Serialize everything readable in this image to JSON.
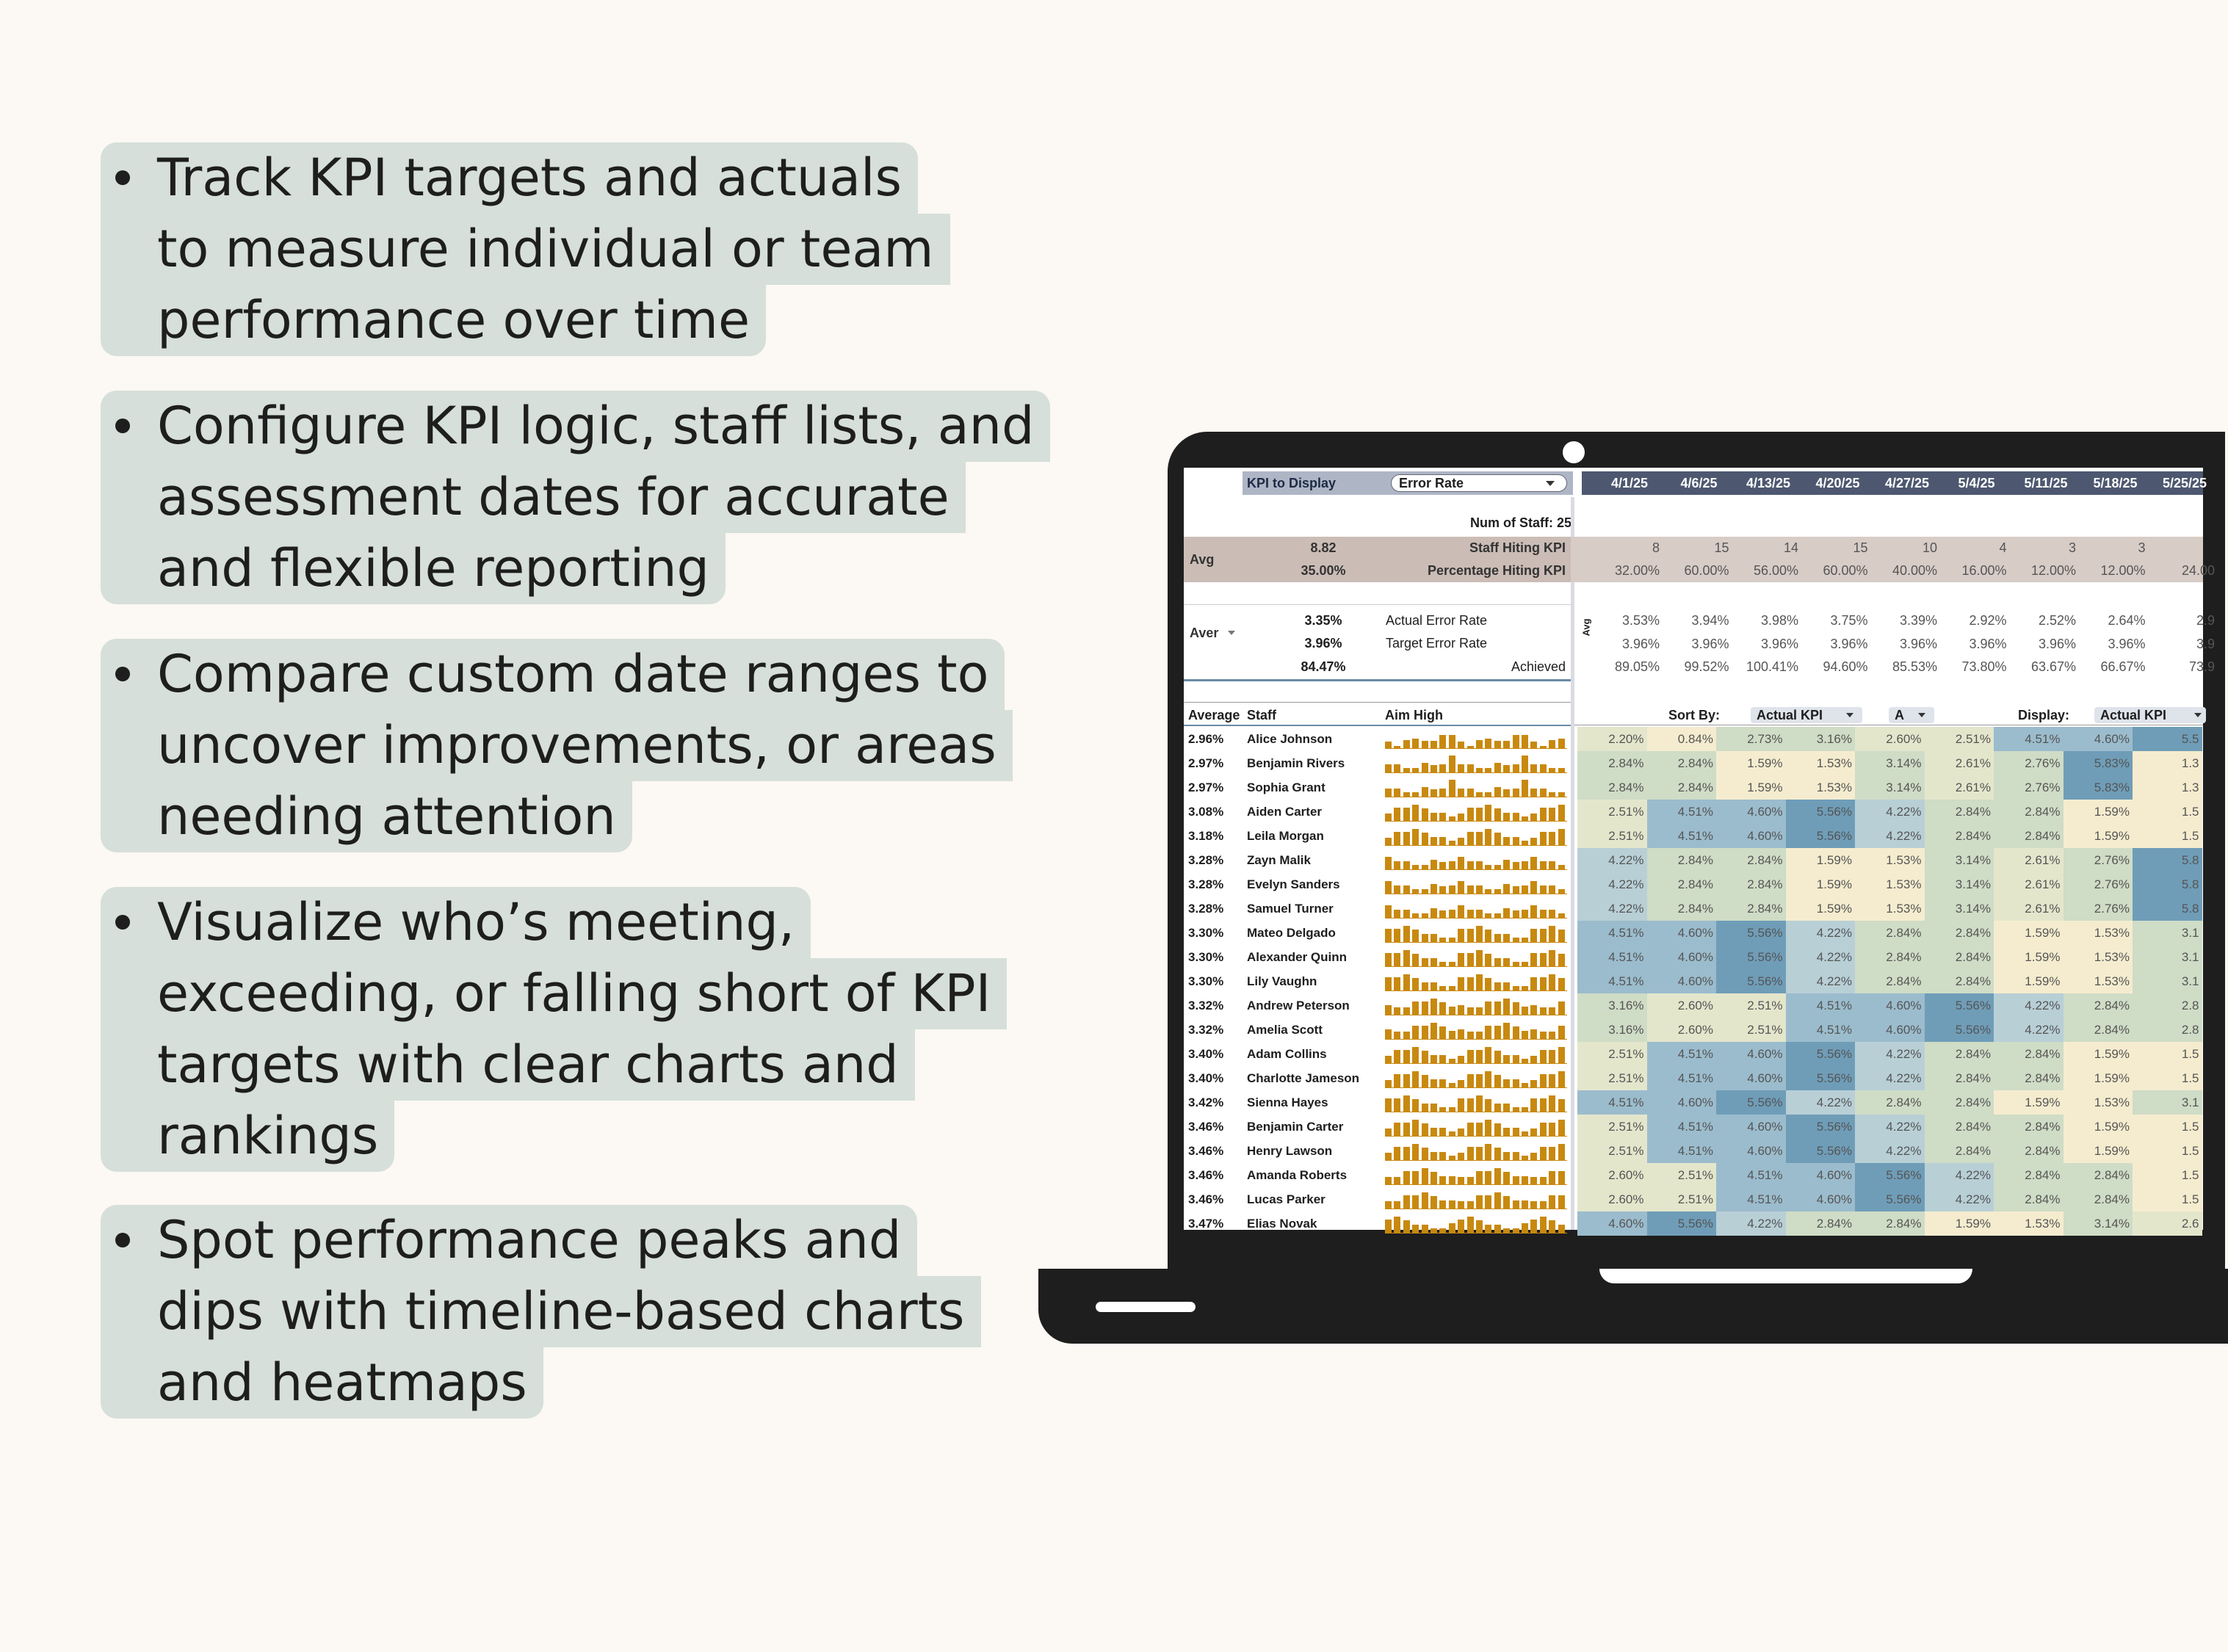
{
  "features": [
    [
      "Track KPI targets and actuals",
      "to measure individual or team",
      "performance over time"
    ],
    [
      "Configure KPI logic, staff lists, and",
      "assessment dates for accurate",
      "and flexible reporting"
    ],
    [
      "Compare custom date ranges to",
      "uncover improvements, or areas",
      "needing attention"
    ],
    [
      "Visualize who’s meeting,",
      "exceeding, or falling short of KPI",
      "targets with clear charts and",
      "rankings"
    ],
    [
      "Spot performance peaks and",
      "dips with timeline-based charts",
      "and heatmaps"
    ]
  ],
  "sheet": {
    "kpi_label": "KPI to Display",
    "kpi_value": "Error Rate",
    "dates": [
      "4/1/25",
      "4/6/25",
      "4/13/25",
      "4/20/25",
      "4/27/25",
      "5/4/25",
      "5/11/25",
      "5/18/25",
      "5/25/25"
    ],
    "num_staff": "Num of Staff: 25",
    "avg_label": "Avg",
    "staff_hitting_avg": "8.82",
    "staff_hitting_label": "Staff Hiting KPI",
    "staff_hitting": [
      "8",
      "15",
      "14",
      "15",
      "10",
      "4",
      "3",
      "3",
      ""
    ],
    "pct_hitting_avg": "35.00%",
    "pct_hitting_label": "Percentage Hiting KPI",
    "pct_hitting": [
      "32.00%",
      "60.00%",
      "56.00%",
      "60.00%",
      "40.00%",
      "16.00%",
      "12.00%",
      "12.00%",
      "24.00"
    ],
    "aver_label": "Aver",
    "actual_rate_avg": "3.35%",
    "actual_rate_label": "Actual Error Rate",
    "actual_rate": [
      "3.53%",
      "3.94%",
      "3.98%",
      "3.75%",
      "3.39%",
      "2.92%",
      "2.52%",
      "2.64%",
      "2.9"
    ],
    "target_rate_avg": "3.96%",
    "target_rate_label": "Target Error Rate",
    "target_rate": [
      "3.96%",
      "3.96%",
      "3.96%",
      "3.96%",
      "3.96%",
      "3.96%",
      "3.96%",
      "3.96%",
      "3.9"
    ],
    "achieved_avg": "84.47%",
    "achieved_label": "Achieved",
    "achieved": [
      "89.05%",
      "99.52%",
      "100.41%",
      "94.60%",
      "85.53%",
      "73.80%",
      "63.67%",
      "66.67%",
      "73.9"
    ],
    "vert_avg": "Avg",
    "col_average": "Average",
    "col_staff": "Staff",
    "col_aim": "Aim High",
    "sort_by_label": "Sort By:",
    "sort_by_value": "Actual KPI",
    "sort_order": "A",
    "display_label": "Display:",
    "display_value": "Actual KPI",
    "staff": [
      {
        "avg": "2.96%",
        "name": "Alice Johnson",
        "vals": [
          "2.20%",
          "0.84%",
          "2.73%",
          "3.16%",
          "2.60%",
          "2.51%",
          "4.51%",
          "4.60%",
          "5.5"
        ]
      },
      {
        "avg": "2.97%",
        "name": "Benjamin Rivers",
        "vals": [
          "2.84%",
          "2.84%",
          "1.59%",
          "1.53%",
          "3.14%",
          "2.61%",
          "2.76%",
          "5.83%",
          "1.3"
        ]
      },
      {
        "avg": "2.97%",
        "name": "Sophia Grant",
        "vals": [
          "2.84%",
          "2.84%",
          "1.59%",
          "1.53%",
          "3.14%",
          "2.61%",
          "2.76%",
          "5.83%",
          "1.3"
        ]
      },
      {
        "avg": "3.08%",
        "name": "Aiden Carter",
        "vals": [
          "2.51%",
          "4.51%",
          "4.60%",
          "5.56%",
          "4.22%",
          "2.84%",
          "2.84%",
          "1.59%",
          "1.5"
        ]
      },
      {
        "avg": "3.18%",
        "name": "Leila Morgan",
        "vals": [
          "2.51%",
          "4.51%",
          "4.60%",
          "5.56%",
          "4.22%",
          "2.84%",
          "2.84%",
          "1.59%",
          "1.5"
        ]
      },
      {
        "avg": "3.28%",
        "name": "Zayn Malik",
        "vals": [
          "4.22%",
          "2.84%",
          "2.84%",
          "1.59%",
          "1.53%",
          "3.14%",
          "2.61%",
          "2.76%",
          "5.8"
        ]
      },
      {
        "avg": "3.28%",
        "name": "Evelyn Sanders",
        "vals": [
          "4.22%",
          "2.84%",
          "2.84%",
          "1.59%",
          "1.53%",
          "3.14%",
          "2.61%",
          "2.76%",
          "5.8"
        ]
      },
      {
        "avg": "3.28%",
        "name": "Samuel Turner",
        "vals": [
          "4.22%",
          "2.84%",
          "2.84%",
          "1.59%",
          "1.53%",
          "3.14%",
          "2.61%",
          "2.76%",
          "5.8"
        ]
      },
      {
        "avg": "3.30%",
        "name": "Mateo Delgado",
        "vals": [
          "4.51%",
          "4.60%",
          "5.56%",
          "4.22%",
          "2.84%",
          "2.84%",
          "1.59%",
          "1.53%",
          "3.1"
        ]
      },
      {
        "avg": "3.30%",
        "name": "Alexander Quinn",
        "vals": [
          "4.51%",
          "4.60%",
          "5.56%",
          "4.22%",
          "2.84%",
          "2.84%",
          "1.59%",
          "1.53%",
          "3.1"
        ]
      },
      {
        "avg": "3.30%",
        "name": "Lily Vaughn",
        "vals": [
          "4.51%",
          "4.60%",
          "5.56%",
          "4.22%",
          "2.84%",
          "2.84%",
          "1.59%",
          "1.53%",
          "3.1"
        ]
      },
      {
        "avg": "3.32%",
        "name": "Andrew Peterson",
        "vals": [
          "3.16%",
          "2.60%",
          "2.51%",
          "4.51%",
          "4.60%",
          "5.56%",
          "4.22%",
          "2.84%",
          "2.8"
        ]
      },
      {
        "avg": "3.32%",
        "name": "Amelia Scott",
        "vals": [
          "3.16%",
          "2.60%",
          "2.51%",
          "4.51%",
          "4.60%",
          "5.56%",
          "4.22%",
          "2.84%",
          "2.8"
        ]
      },
      {
        "avg": "3.40%",
        "name": "Adam Collins",
        "vals": [
          "2.51%",
          "4.51%",
          "4.60%",
          "5.56%",
          "4.22%",
          "2.84%",
          "2.84%",
          "1.59%",
          "1.5"
        ]
      },
      {
        "avg": "3.40%",
        "name": "Charlotte Jameson",
        "vals": [
          "2.51%",
          "4.51%",
          "4.60%",
          "5.56%",
          "4.22%",
          "2.84%",
          "2.84%",
          "1.59%",
          "1.5"
        ]
      },
      {
        "avg": "3.42%",
        "name": "Sienna Hayes",
        "vals": [
          "4.51%",
          "4.60%",
          "5.56%",
          "4.22%",
          "2.84%",
          "2.84%",
          "1.59%",
          "1.53%",
          "3.1"
        ]
      },
      {
        "avg": "3.46%",
        "name": "Benjamin Carter",
        "vals": [
          "2.51%",
          "4.51%",
          "4.60%",
          "5.56%",
          "4.22%",
          "2.84%",
          "2.84%",
          "1.59%",
          "1.5"
        ]
      },
      {
        "avg": "3.46%",
        "name": "Henry Lawson",
        "vals": [
          "2.51%",
          "4.51%",
          "4.60%",
          "5.56%",
          "4.22%",
          "2.84%",
          "2.84%",
          "1.59%",
          "1.5"
        ]
      },
      {
        "avg": "3.46%",
        "name": "Amanda Roberts",
        "vals": [
          "2.60%",
          "2.51%",
          "4.51%",
          "4.60%",
          "5.56%",
          "4.22%",
          "2.84%",
          "2.84%",
          "1.5"
        ]
      },
      {
        "avg": "3.46%",
        "name": "Lucas Parker",
        "vals": [
          "2.60%",
          "2.51%",
          "4.51%",
          "4.60%",
          "5.56%",
          "4.22%",
          "2.84%",
          "2.84%",
          "1.5"
        ]
      },
      {
        "avg": "3.47%",
        "name": "Elias Novak",
        "vals": [
          "4.60%",
          "5.56%",
          "4.22%",
          "2.84%",
          "2.84%",
          "1.59%",
          "1.53%",
          "3.14%",
          "2.6"
        ]
      }
    ],
    "colors": {
      "header_bg": "#4d5870",
      "kpi_bar_bg": "#aeb6c6",
      "summary_bg": "#d8ccc6",
      "spark": "#c8890f",
      "heat_low": "#f5eccf",
      "heat_mid": "#cfdcc6",
      "heat_high": "#7fa6bd"
    }
  }
}
